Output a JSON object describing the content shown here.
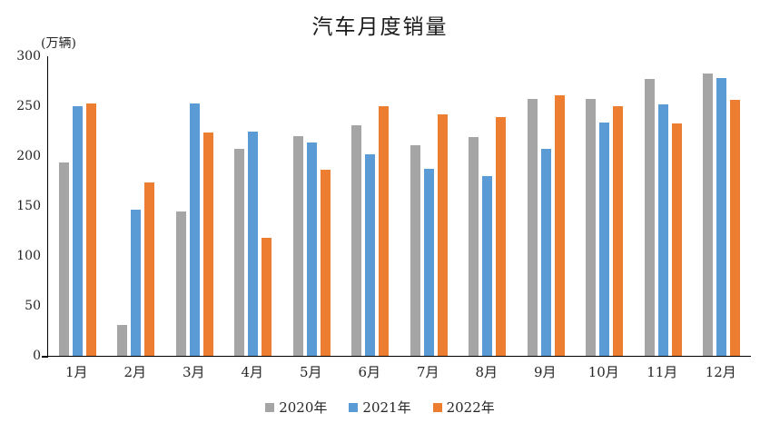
{
  "page": {
    "background": "#ffffff",
    "text_color": "#262626"
  },
  "chart_data": {
    "type": "bar",
    "title": "汽车月度销量",
    "unit_label": "(万辆)",
    "xlabel": "",
    "ylabel": "万辆",
    "categories": [
      "1月",
      "2月",
      "3月",
      "4月",
      "5月",
      "6月",
      "7月",
      "8月",
      "9月",
      "10月",
      "11月",
      "12月"
    ],
    "series": [
      {
        "name": "2020年",
        "color": "#A5A5A5",
        "values": [
          194,
          31,
          145,
          207,
          220,
          231,
          211,
          219,
          257,
          257,
          277,
          283
        ]
      },
      {
        "name": "2021年",
        "color": "#5B9BD5",
        "values": [
          250,
          146,
          253,
          225,
          214,
          202,
          187,
          180,
          207,
          234,
          252,
          278
        ]
      },
      {
        "name": "2022年",
        "color": "#ED7D31",
        "values": [
          253,
          174,
          224,
          118,
          186,
          250,
          242,
          239,
          261,
          250,
          233,
          256
        ]
      }
    ],
    "ylim": [
      0,
      300
    ],
    "yticks": [
      0,
      50,
      100,
      150,
      200,
      250,
      300
    ],
    "grid": false,
    "legend_position": "bottom",
    "axis_color": "#000000"
  }
}
